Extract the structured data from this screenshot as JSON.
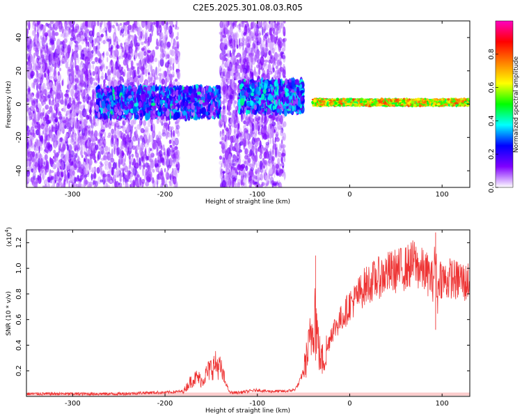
{
  "figure_title": "C2E5.2025.301.08.03.R05",
  "chart_data": [
    {
      "type": "heatmap",
      "xlabel": "Height of straight line (km)",
      "ylabel": "Frequency (Hz)",
      "xlim": [
        -350,
        130
      ],
      "ylim": [
        -50,
        50
      ],
      "x_ticks": [
        -300,
        -200,
        -100,
        0,
        100
      ],
      "y_ticks": [
        -40,
        -20,
        0,
        20,
        40
      ],
      "colorbar": {
        "label": "Normalized spectral amplitude",
        "range": [
          0.0,
          1.0
        ],
        "ticks": [
          0.0,
          0.2,
          0.4,
          0.6,
          0.8
        ],
        "tick_labels": [
          "0.0",
          "0.2",
          "0.4",
          "0.6",
          "0.8"
        ],
        "colors": [
          "#ffffff",
          "#8000ff",
          "#0000ff",
          "#00ffff",
          "#00ff00",
          "#ffff00",
          "#ff8000",
          "#ff0000",
          "#ff00c0"
        ]
      },
      "regions": [
        {
          "name": "diffuse scatter",
          "x_range": [
            -350,
            -280
          ],
          "freq_range": [
            -50,
            50
          ],
          "amplitude": 0.05
        },
        {
          "name": "diffuse scatter",
          "x_range": [
            -280,
            -185
          ],
          "freq_range": [
            -50,
            50
          ],
          "amplitude": 0.03
        },
        {
          "name": "diffuse scatter",
          "x_range": [
            -140,
            -70
          ],
          "freq_range": [
            -50,
            50
          ],
          "amplitude": 0.04
        },
        {
          "name": "central band",
          "x_range": [
            -275,
            -140
          ],
          "freq_range": [
            -8,
            10
          ],
          "amplitude": 0.2
        },
        {
          "name": "central band",
          "x_range": [
            -120,
            -50
          ],
          "freq_range": [
            -5,
            14
          ],
          "amplitude": 0.25
        },
        {
          "name": "tone line",
          "x_range": [
            -40,
            130
          ],
          "freq_range": [
            -1,
            3
          ],
          "amplitude": 0.75
        }
      ]
    },
    {
      "type": "line",
      "xlabel": "Height of straight line (km)",
      "ylabel": "SNR (10 * v/v)",
      "y_multiplier": "(x10",
      "y_multiplier_exp": "4",
      "xlim": [
        -350,
        130
      ],
      "ylim": [
        0,
        1.3
      ],
      "x_ticks": [
        -300,
        -200,
        -100,
        0,
        100
      ],
      "y_ticks": [
        0.2,
        0.4,
        0.6,
        0.8,
        1.0,
        1.2
      ],
      "y_tick_labels": [
        "0.2",
        "0.4",
        "0.6",
        "0.8",
        "1.0",
        "1.2"
      ],
      "color": "#ee3333",
      "series": [
        {
          "x": [
            -350,
            -300,
            -250,
            -215,
            -200,
            -180,
            -172,
            -165,
            -160,
            -155,
            -150,
            -145,
            -140,
            -135,
            -130,
            -120,
            -110,
            -100,
            -90,
            -80,
            -70,
            -60,
            -55,
            -50,
            -45,
            -40,
            -38,
            -36,
            -34,
            -32,
            -30,
            -25,
            -20,
            -15,
            -10,
            -5,
            0,
            5,
            10,
            15,
            20,
            25,
            30,
            35,
            40,
            45,
            50,
            55,
            60,
            65,
            70,
            75,
            80,
            85,
            90,
            93,
            95,
            97,
            100,
            105,
            110,
            115,
            120,
            125,
            130
          ],
          "y": [
            0.02,
            0.02,
            0.02,
            0.03,
            0.03,
            0.04,
            0.12,
            0.15,
            0.12,
            0.18,
            0.22,
            0.25,
            0.22,
            0.12,
            0.03,
            0.03,
            0.04,
            0.05,
            0.04,
            0.04,
            0.04,
            0.05,
            0.1,
            0.2,
            0.35,
            0.55,
            0.7,
            0.55,
            0.4,
            0.3,
            0.28,
            0.35,
            0.5,
            0.55,
            0.6,
            0.65,
            0.72,
            0.75,
            0.8,
            0.85,
            0.88,
            0.9,
            0.92,
            0.94,
            0.96,
            0.97,
            0.98,
            0.99,
            1.0,
            1.02,
            1.05,
            1.0,
            0.98,
            0.95,
            0.9,
            1.1,
            0.75,
            0.95,
            0.92,
            0.9,
            0.93,
            0.9,
            0.92,
            0.88,
            0.92
          ]
        }
      ]
    }
  ]
}
